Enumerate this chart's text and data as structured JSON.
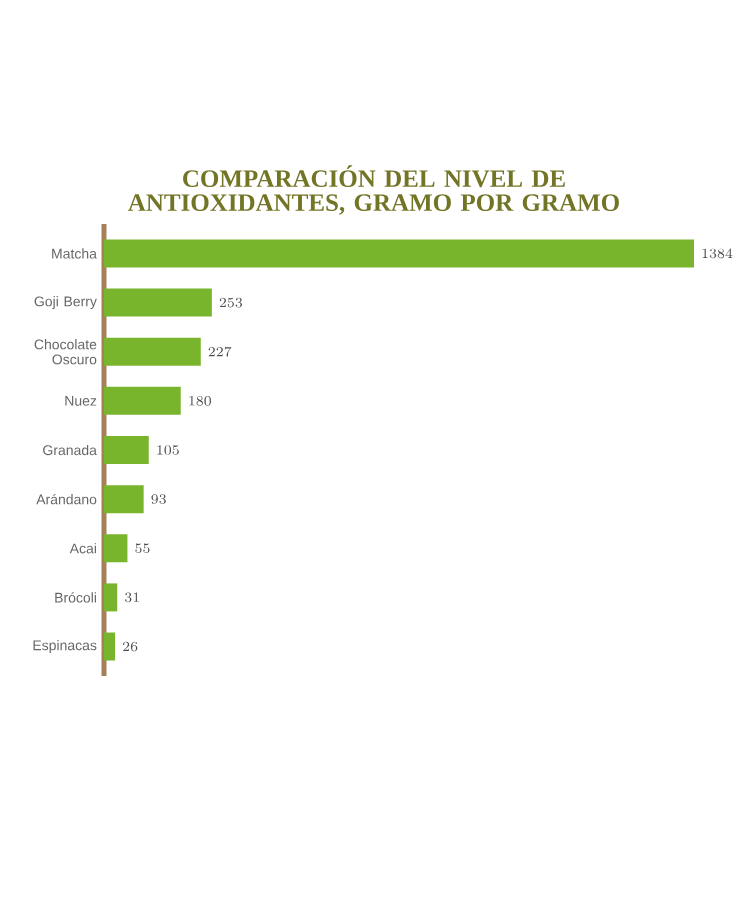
{
  "chart_data": {
    "type": "bar",
    "orientation": "horizontal",
    "title": "COMPARACIÓN DEL NIVEL DE ANTIOXIDANTES, GRAMO POR GRAMO",
    "categories": [
      "Matcha",
      "Goji Berry",
      "Chocolate Oscuro",
      "Nuez",
      "Granada",
      "Arándano",
      "Acai",
      "Brócoli",
      "Espinacas"
    ],
    "values": [
      1384,
      253,
      227,
      180,
      105,
      93,
      55,
      31,
      26
    ],
    "color": "#78b52c",
    "data_labels": true
  }
}
